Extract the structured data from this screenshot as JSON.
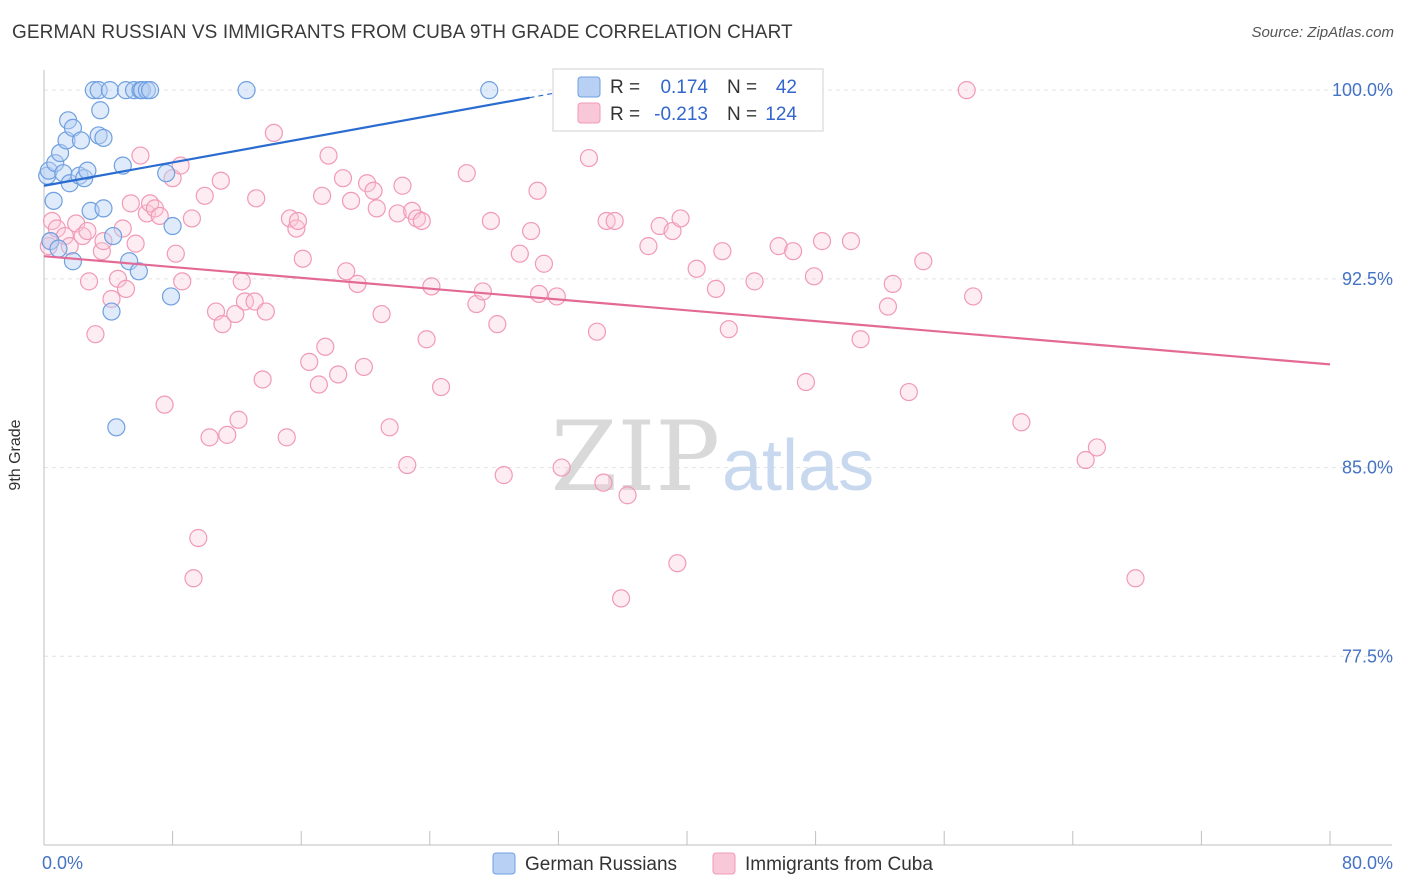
{
  "title": "GERMAN RUSSIAN VS IMMIGRANTS FROM CUBA 9TH GRADE CORRELATION CHART",
  "source": "Source: ZipAtlas.com",
  "watermark": {
    "zip": "ZIP",
    "atlas": "atlas"
  },
  "chart_data": {
    "type": "scatter",
    "title": "GERMAN RUSSIAN VS IMMIGRANTS FROM CUBA 9TH GRADE CORRELATION CHART",
    "xlabel": "",
    "ylabel": "9th Grade",
    "xlim": [
      0,
      80
    ],
    "ylim": [
      70,
      100.8
    ],
    "x_tick_labels": [
      "0.0%",
      "80.0%"
    ],
    "y_ticks": [
      100.0,
      92.5,
      85.0,
      77.5
    ],
    "y_tick_labels": [
      "100.0%",
      "92.5%",
      "85.0%",
      "77.5%"
    ],
    "grid": true,
    "legend_position": "top-center",
    "series": [
      {
        "name": "German Russians",
        "color": "#6fa0e0",
        "line_color": "#2a6ccf",
        "R": "0.174",
        "N": "42",
        "trend": {
          "x": [
            0,
            30.2
          ],
          "y": [
            96.2,
            99.7
          ]
        },
        "points": [
          [
            0.2,
            96.6
          ],
          [
            0.3,
            96.8
          ],
          [
            0.4,
            94.0
          ],
          [
            0.6,
            95.6
          ],
          [
            0.7,
            97.1
          ],
          [
            0.9,
            93.7
          ],
          [
            1.0,
            97.5
          ],
          [
            1.2,
            96.7
          ],
          [
            1.4,
            98.0
          ],
          [
            1.5,
            98.8
          ],
          [
            1.6,
            96.3
          ],
          [
            1.8,
            93.2
          ],
          [
            1.8,
            98.5
          ],
          [
            2.2,
            96.6
          ],
          [
            2.3,
            98.0
          ],
          [
            2.5,
            96.5
          ],
          [
            2.7,
            96.8
          ],
          [
            2.9,
            95.2
          ],
          [
            3.1,
            100.0
          ],
          [
            3.4,
            100.0
          ],
          [
            3.4,
            98.2
          ],
          [
            3.5,
            99.2
          ],
          [
            3.7,
            98.1
          ],
          [
            3.7,
            95.3
          ],
          [
            4.1,
            100.0
          ],
          [
            4.2,
            91.2
          ],
          [
            4.3,
            94.2
          ],
          [
            4.5,
            86.6
          ],
          [
            4.9,
            97.0
          ],
          [
            5.1,
            100.0
          ],
          [
            5.3,
            93.2
          ],
          [
            5.6,
            100.0
          ],
          [
            5.9,
            92.8
          ],
          [
            6.0,
            100.0
          ],
          [
            6.1,
            100.0
          ],
          [
            6.4,
            100.0
          ],
          [
            6.6,
            100.0
          ],
          [
            7.6,
            96.7
          ],
          [
            7.9,
            91.8
          ],
          [
            8.0,
            94.6
          ],
          [
            12.6,
            100.0
          ],
          [
            27.7,
            100.0
          ]
        ]
      },
      {
        "name": "Immigrants from Cuba",
        "color": "#f19ab6",
        "line_color": "#e46a96",
        "R": "-0.213",
        "N": "124",
        "trend": {
          "x": [
            0,
            80
          ],
          "y": [
            93.4,
            89.1
          ]
        },
        "points": [
          [
            0.3,
            93.8
          ],
          [
            0.4,
            94.0
          ],
          [
            0.5,
            94.8
          ],
          [
            0.8,
            94.5
          ],
          [
            1.3,
            94.2
          ],
          [
            1.6,
            93.8
          ],
          [
            2.0,
            94.7
          ],
          [
            2.4,
            94.2
          ],
          [
            2.7,
            94.4
          ],
          [
            2.8,
            92.4
          ],
          [
            3.2,
            90.3
          ],
          [
            3.6,
            93.6
          ],
          [
            3.7,
            94.0
          ],
          [
            4.2,
            91.7
          ],
          [
            4.6,
            92.5
          ],
          [
            4.9,
            94.5
          ],
          [
            5.1,
            92.1
          ],
          [
            5.4,
            95.5
          ],
          [
            5.7,
            93.9
          ],
          [
            6.0,
            97.4
          ],
          [
            6.4,
            95.1
          ],
          [
            6.6,
            95.5
          ],
          [
            6.9,
            95.3
          ],
          [
            7.2,
            95.0
          ],
          [
            7.5,
            87.5
          ],
          [
            8.0,
            96.5
          ],
          [
            8.2,
            93.5
          ],
          [
            8.5,
            97.0
          ],
          [
            8.6,
            92.4
          ],
          [
            9.2,
            94.9
          ],
          [
            9.6,
            82.2
          ],
          [
            9.3,
            80.6
          ],
          [
            10.0,
            95.8
          ],
          [
            10.3,
            86.2
          ],
          [
            10.7,
            91.2
          ],
          [
            11.0,
            96.4
          ],
          [
            11.1,
            90.7
          ],
          [
            11.4,
            86.3
          ],
          [
            11.9,
            91.1
          ],
          [
            12.1,
            86.9
          ],
          [
            12.3,
            92.4
          ],
          [
            12.5,
            91.6
          ],
          [
            13.1,
            91.6
          ],
          [
            13.2,
            95.7
          ],
          [
            13.6,
            88.5
          ],
          [
            13.8,
            91.2
          ],
          [
            14.3,
            98.3
          ],
          [
            15.1,
            86.2
          ],
          [
            15.3,
            94.9
          ],
          [
            15.7,
            94.5
          ],
          [
            15.8,
            94.8
          ],
          [
            16.1,
            93.3
          ],
          [
            16.5,
            89.2
          ],
          [
            17.1,
            88.3
          ],
          [
            17.3,
            95.8
          ],
          [
            17.5,
            89.8
          ],
          [
            17.7,
            97.4
          ],
          [
            18.3,
            88.7
          ],
          [
            18.6,
            96.5
          ],
          [
            18.8,
            92.8
          ],
          [
            19.1,
            95.6
          ],
          [
            19.5,
            92.3
          ],
          [
            19.9,
            89.0
          ],
          [
            20.1,
            96.3
          ],
          [
            20.5,
            96.0
          ],
          [
            20.7,
            95.3
          ],
          [
            21.0,
            91.1
          ],
          [
            21.5,
            86.6
          ],
          [
            22.0,
            95.1
          ],
          [
            22.3,
            96.2
          ],
          [
            22.6,
            85.1
          ],
          [
            22.9,
            95.2
          ],
          [
            23.2,
            94.9
          ],
          [
            23.5,
            94.8
          ],
          [
            23.8,
            90.1
          ],
          [
            24.1,
            92.2
          ],
          [
            24.7,
            88.2
          ],
          [
            26.3,
            96.7
          ],
          [
            26.9,
            91.5
          ],
          [
            27.3,
            92.0
          ],
          [
            27.8,
            94.8
          ],
          [
            28.2,
            90.7
          ],
          [
            29.6,
            93.5
          ],
          [
            30.3,
            94.4
          ],
          [
            30.7,
            96.0
          ],
          [
            30.8,
            91.9
          ],
          [
            31.1,
            93.1
          ],
          [
            31.9,
            91.8
          ],
          [
            33.9,
            97.3
          ],
          [
            34.4,
            90.4
          ],
          [
            34.8,
            84.4
          ],
          [
            35.0,
            94.8
          ],
          [
            35.5,
            94.8
          ],
          [
            35.9,
            79.8
          ],
          [
            36.3,
            83.9
          ],
          [
            37.6,
            93.8
          ],
          [
            38.3,
            94.6
          ],
          [
            39.1,
            94.4
          ],
          [
            39.4,
            81.2
          ],
          [
            39.6,
            94.9
          ],
          [
            40.6,
            92.9
          ],
          [
            41.8,
            92.1
          ],
          [
            42.2,
            93.6
          ],
          [
            42.6,
            90.5
          ],
          [
            44.2,
            92.4
          ],
          [
            45.7,
            93.8
          ],
          [
            46.6,
            93.6
          ],
          [
            47.4,
            88.4
          ],
          [
            47.9,
            92.6
          ],
          [
            48.4,
            94.0
          ],
          [
            50.2,
            94.0
          ],
          [
            50.8,
            90.1
          ],
          [
            52.5,
            91.4
          ],
          [
            52.8,
            92.3
          ],
          [
            53.8,
            88.0
          ],
          [
            54.7,
            93.2
          ],
          [
            57.4,
            100.0
          ],
          [
            57.8,
            91.8
          ],
          [
            60.8,
            86.8
          ],
          [
            64.8,
            85.3
          ],
          [
            65.5,
            85.8
          ],
          [
            67.9,
            80.6
          ],
          [
            32.2,
            85.0
          ],
          [
            28.6,
            84.7
          ]
        ]
      }
    ]
  }
}
